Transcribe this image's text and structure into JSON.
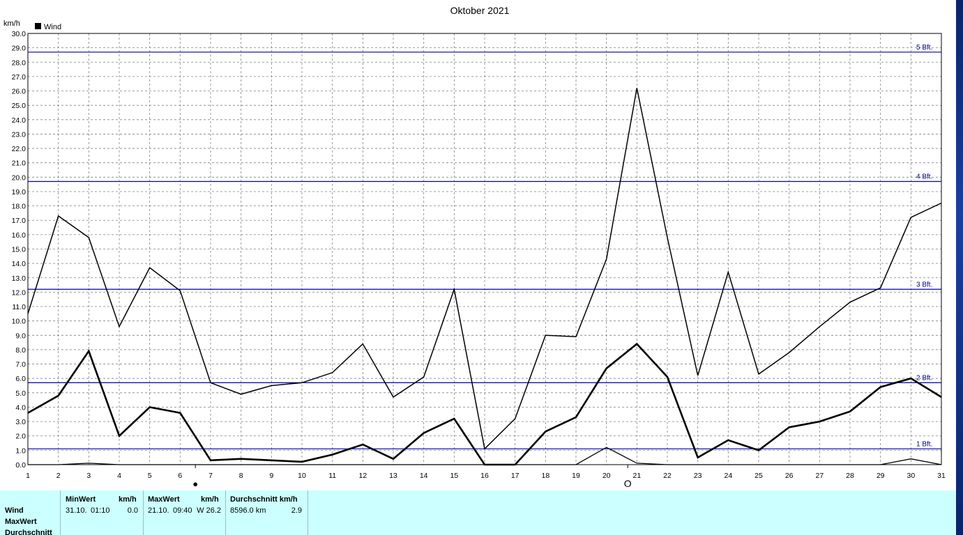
{
  "chart_data": {
    "type": "line",
    "title": "Oktober 2021",
    "ylabel": "km/h",
    "xlabel": "",
    "legend": {
      "entries": [
        "Wind"
      ],
      "placement": "top-left"
    },
    "ylim": [
      0,
      30
    ],
    "ystep": 1,
    "x": [
      1,
      2,
      3,
      4,
      5,
      6,
      7,
      8,
      9,
      10,
      11,
      12,
      13,
      14,
      15,
      16,
      17,
      18,
      19,
      20,
      21,
      22,
      23,
      24,
      25,
      26,
      27,
      28,
      29,
      30,
      31
    ],
    "series": [
      {
        "style": "max",
        "values": [
          10.5,
          17.3,
          15.8,
          9.6,
          13.7,
          12.1,
          5.7,
          4.9,
          5.5,
          5.7,
          6.4,
          8.4,
          4.7,
          6.1,
          12.2,
          1.1,
          3.2,
          9.0,
          8.9,
          14.3,
          26.2,
          15.8,
          6.2,
          13.4,
          6.3,
          7.8,
          9.6,
          11.3,
          12.3,
          17.2,
          18.2
        ]
      },
      {
        "style": "average",
        "values": [
          3.6,
          4.8,
          7.9,
          2.0,
          4.0,
          3.6,
          0.3,
          0.4,
          0.3,
          0.2,
          0.7,
          1.4,
          0.4,
          2.2,
          3.2,
          0.0,
          0.0,
          2.3,
          3.3,
          6.7,
          8.4,
          6.1,
          0.5,
          1.7,
          1.0,
          2.6,
          3.0,
          3.7,
          5.4,
          6.0,
          4.7
        ]
      },
      {
        "style": "min",
        "values": [
          0,
          0,
          0.1,
          0,
          0,
          0,
          0,
          0,
          0,
          0,
          0,
          0,
          0,
          0,
          0,
          0,
          0,
          0,
          0,
          1.2,
          0.1,
          0,
          0,
          0,
          0,
          0,
          0,
          0,
          0,
          0.4,
          0
        ]
      }
    ],
    "reference_lines": [
      {
        "label": "1 Bft.",
        "value": 1.1
      },
      {
        "label": "2 Bft.",
        "value": 5.7
      },
      {
        "label": "3 Bft.",
        "value": 12.2
      },
      {
        "label": "4 Bft.",
        "value": 19.7
      },
      {
        "label": "5 Bft.",
        "value": 28.7
      }
    ],
    "moon_markers": [
      {
        "day": 6.5,
        "phase": "new",
        "symbol": "●"
      },
      {
        "day": 20.7,
        "phase": "full",
        "symbol": "O"
      }
    ],
    "grid": true,
    "colors": {
      "series": "#000000",
      "reference": "#0000aa",
      "grid": "#808080"
    }
  },
  "info_panel": {
    "row_labels": [
      "Wind",
      "MaxWert",
      "Durchschnitt"
    ],
    "min": {
      "header": "MinWert",
      "unit": "km/h",
      "date": "31.10.",
      "time": "01:10",
      "value": "0.0"
    },
    "max": {
      "header": "MaxWert",
      "unit": "km/h",
      "date": "21.10.",
      "time": "09:40",
      "value": "W 26.2"
    },
    "avg": {
      "header": "Durchschnitt km/h",
      "distance": "8596.0 km",
      "value": "2.9"
    }
  }
}
